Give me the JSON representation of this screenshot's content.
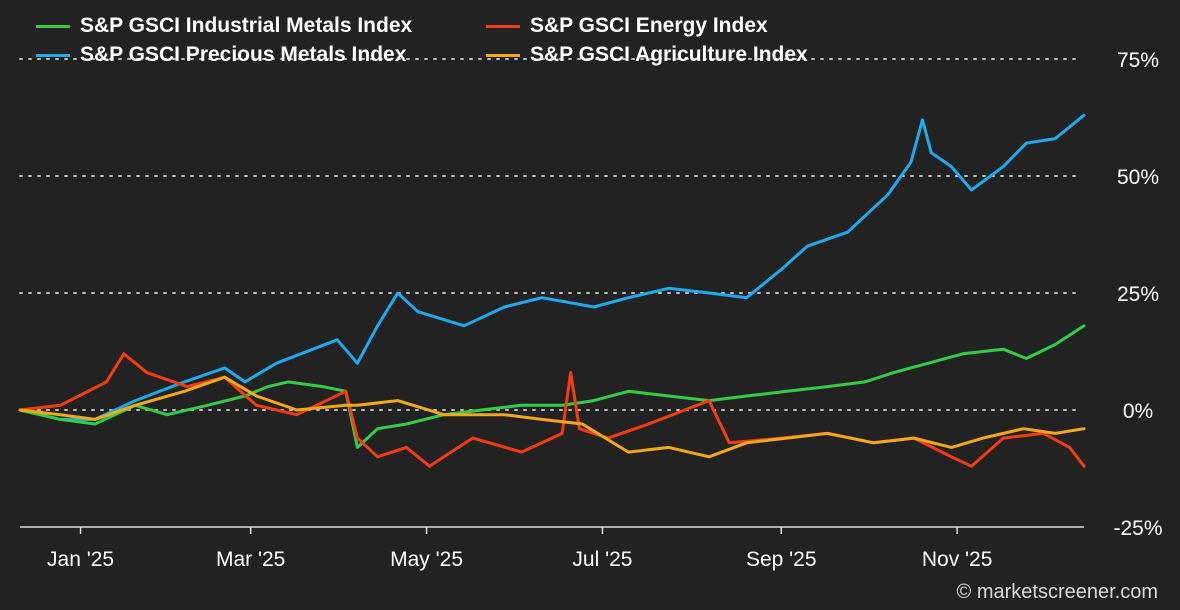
{
  "chart_data": {
    "type": "line",
    "title": "",
    "xlabel": "",
    "ylabel": "",
    "ylim": [
      -25,
      75
    ],
    "y_ticks": [
      "75%",
      "50%",
      "25%",
      "0%",
      "-25%"
    ],
    "y_tick_values": [
      75,
      50,
      25,
      0,
      -25
    ],
    "x_ticks": [
      "Jan '25",
      "Mar '25",
      "May '25",
      "Jul '25",
      "Sep '25",
      "Nov '25"
    ],
    "x_tick_dates": [
      "2025-01-01",
      "2025-03-01",
      "2025-05-01",
      "2025-07-01",
      "2025-09-01",
      "2025-11-01"
    ],
    "x_range": [
      "2024-12-11",
      "2025-12-15"
    ],
    "grid": "horizontal dotted",
    "legend": "top-left",
    "series": [
      {
        "name": "S&P GSCI Industrial Metals Index",
        "color": "#33cc44",
        "points": [
          [
            "2024-12-11",
            0
          ],
          [
            "2024-12-25",
            -2
          ],
          [
            "2025-01-06",
            -3
          ],
          [
            "2025-01-20",
            1
          ],
          [
            "2025-01-31",
            -1
          ],
          [
            "2025-02-14",
            1
          ],
          [
            "2025-02-27",
            3
          ],
          [
            "2025-03-07",
            5
          ],
          [
            "2025-03-14",
            6
          ],
          [
            "2025-03-26",
            5
          ],
          [
            "2025-04-03",
            4
          ],
          [
            "2025-04-07",
            -8
          ],
          [
            "2025-04-14",
            -4
          ],
          [
            "2025-04-24",
            -3
          ],
          [
            "2025-05-07",
            -1
          ],
          [
            "2025-05-20",
            0
          ],
          [
            "2025-06-03",
            1
          ],
          [
            "2025-06-17",
            1
          ],
          [
            "2025-06-28",
            2
          ],
          [
            "2025-07-10",
            4
          ],
          [
            "2025-07-24",
            3
          ],
          [
            "2025-08-07",
            2
          ],
          [
            "2025-08-20",
            3
          ],
          [
            "2025-09-03",
            4
          ],
          [
            "2025-09-17",
            5
          ],
          [
            "2025-09-30",
            6
          ],
          [
            "2025-10-10",
            8
          ],
          [
            "2025-10-22",
            10
          ],
          [
            "2025-11-03",
            12
          ],
          [
            "2025-11-17",
            13
          ],
          [
            "2025-11-25",
            11
          ],
          [
            "2025-12-05",
            14
          ],
          [
            "2025-12-15",
            18
          ]
        ]
      },
      {
        "name": "S&P GSCI Precious Metals Index",
        "color": "#1fa9ee",
        "points": [
          [
            "2024-12-11",
            0
          ],
          [
            "2024-12-25",
            -2
          ],
          [
            "2025-01-06",
            -2
          ],
          [
            "2025-01-20",
            2
          ],
          [
            "2025-02-06",
            6
          ],
          [
            "2025-02-20",
            9
          ],
          [
            "2025-02-27",
            6
          ],
          [
            "2025-03-10",
            10
          ],
          [
            "2025-03-31",
            15
          ],
          [
            "2025-04-07",
            10
          ],
          [
            "2025-04-14",
            18
          ],
          [
            "2025-04-21",
            25
          ],
          [
            "2025-04-28",
            21
          ],
          [
            "2025-05-14",
            18
          ],
          [
            "2025-05-28",
            22
          ],
          [
            "2025-06-10",
            24
          ],
          [
            "2025-06-28",
            22
          ],
          [
            "2025-07-10",
            24
          ],
          [
            "2025-07-24",
            26
          ],
          [
            "2025-08-07",
            25
          ],
          [
            "2025-08-20",
            24
          ],
          [
            "2025-09-01",
            30
          ],
          [
            "2025-09-10",
            35
          ],
          [
            "2025-09-24",
            38
          ],
          [
            "2025-10-08",
            46
          ],
          [
            "2025-10-16",
            53
          ],
          [
            "2025-10-20",
            62
          ],
          [
            "2025-10-23",
            55
          ],
          [
            "2025-10-30",
            52
          ],
          [
            "2025-11-06",
            47
          ],
          [
            "2025-11-17",
            52
          ],
          [
            "2025-11-25",
            57
          ],
          [
            "2025-12-05",
            58
          ],
          [
            "2025-12-15",
            63
          ]
        ]
      },
      {
        "name": "S&P GSCI Energy Index",
        "color": "#f53d10",
        "points": [
          [
            "2024-12-11",
            0
          ],
          [
            "2024-12-25",
            1
          ],
          [
            "2025-01-10",
            6
          ],
          [
            "2025-01-16",
            12
          ],
          [
            "2025-01-24",
            8
          ],
          [
            "2025-02-07",
            5
          ],
          [
            "2025-02-20",
            7
          ],
          [
            "2025-03-03",
            1
          ],
          [
            "2025-03-17",
            -1
          ],
          [
            "2025-04-03",
            4
          ],
          [
            "2025-04-07",
            -6
          ],
          [
            "2025-04-14",
            -10
          ],
          [
            "2025-04-24",
            -8
          ],
          [
            "2025-05-02",
            -12
          ],
          [
            "2025-05-07",
            -10
          ],
          [
            "2025-05-17",
            -6
          ],
          [
            "2025-06-03",
            -9
          ],
          [
            "2025-06-17",
            -5
          ],
          [
            "2025-06-20",
            8
          ],
          [
            "2025-06-23",
            -4
          ],
          [
            "2025-07-03",
            -6
          ],
          [
            "2025-07-17",
            -3
          ],
          [
            "2025-08-07",
            2
          ],
          [
            "2025-08-14",
            -7
          ],
          [
            "2025-09-01",
            -6
          ],
          [
            "2025-09-17",
            -5
          ],
          [
            "2025-10-03",
            -7
          ],
          [
            "2025-10-17",
            -6
          ],
          [
            "2025-10-30",
            -10
          ],
          [
            "2025-11-06",
            -12
          ],
          [
            "2025-11-17",
            -6
          ],
          [
            "2025-12-01",
            -5
          ],
          [
            "2025-12-10",
            -8
          ],
          [
            "2025-12-15",
            -12
          ]
        ]
      },
      {
        "name": "S&P GSCI Agriculture Index",
        "color": "#f4a81d",
        "points": [
          [
            "2024-12-11",
            0
          ],
          [
            "2024-12-25",
            -1
          ],
          [
            "2025-01-06",
            -2
          ],
          [
            "2025-01-20",
            1
          ],
          [
            "2025-02-06",
            4
          ],
          [
            "2025-02-20",
            7
          ],
          [
            "2025-03-03",
            3
          ],
          [
            "2025-03-17",
            0
          ],
          [
            "2025-04-03",
            1
          ],
          [
            "2025-04-07",
            1
          ],
          [
            "2025-04-21",
            2
          ],
          [
            "2025-05-07",
            -1
          ],
          [
            "2025-05-28",
            -1
          ],
          [
            "2025-06-10",
            -2
          ],
          [
            "2025-06-24",
            -3
          ],
          [
            "2025-07-10",
            -9
          ],
          [
            "2025-07-24",
            -8
          ],
          [
            "2025-08-07",
            -10
          ],
          [
            "2025-08-20",
            -7
          ],
          [
            "2025-09-03",
            -6
          ],
          [
            "2025-09-17",
            -5
          ],
          [
            "2025-10-03",
            -7
          ],
          [
            "2025-10-17",
            -6
          ],
          [
            "2025-10-30",
            -8
          ],
          [
            "2025-11-10",
            -6
          ],
          [
            "2025-11-24",
            -4
          ],
          [
            "2025-12-05",
            -5
          ],
          [
            "2025-12-15",
            -4
          ]
        ]
      }
    ]
  },
  "credit": "© marketscreener.com"
}
